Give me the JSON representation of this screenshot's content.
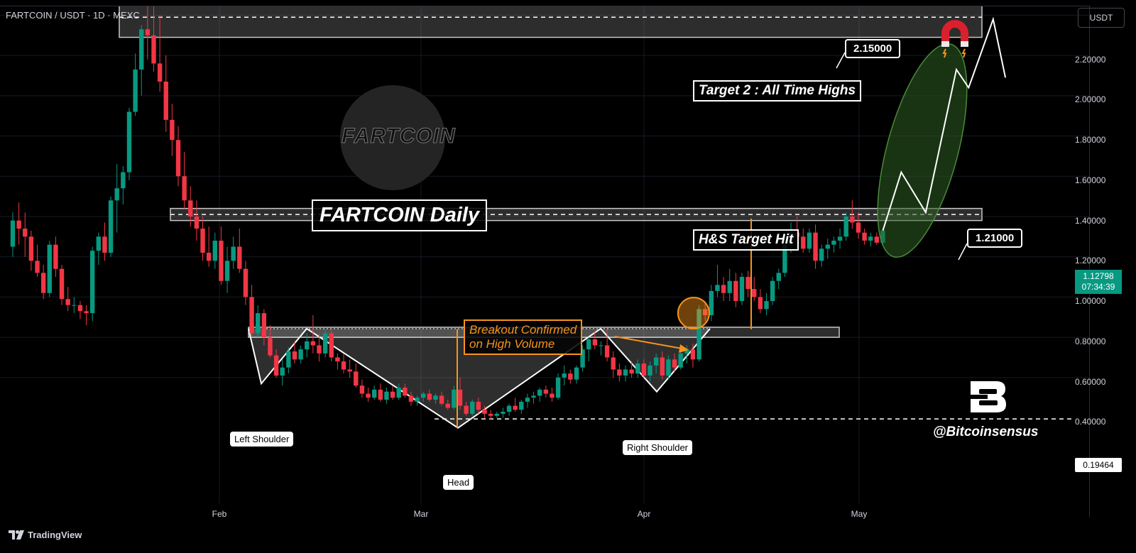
{
  "header": {
    "symbol_title": "FARTCOIN / USDT · 1D · MEXC",
    "currency_button": "USDT"
  },
  "footer": {
    "brand": "TradingView"
  },
  "annotations": {
    "chart_title": "FARTCOIN Daily",
    "target2": "Target 2 : All Time Highs",
    "hs_target": "H&S Target Hit",
    "breakout_line1": "Breakout Confirmed",
    "breakout_line2": "on High Volume",
    "level_high": "2.15000",
    "level_mid": "1.21000",
    "left_shoulder": "Left Shoulder",
    "head": "Head",
    "right_shoulder": "Right Shoulder",
    "handle": "@Bitcoinsensus",
    "watermark": "FARTCOIN"
  },
  "price_axis": {
    "labels": [
      "2.20000",
      "2.00000",
      "1.80000",
      "1.60000",
      "1.40000",
      "1.20000",
      "1.00000",
      "0.80000",
      "0.60000",
      "0.40000"
    ],
    "current_price": "1.12798",
    "countdown": "07:34:39",
    "low_marker": "0.19464"
  },
  "time_axis": {
    "labels": [
      "Feb",
      "Mar",
      "Apr",
      "May"
    ]
  },
  "colors": {
    "up": "#089981",
    "down": "#f23645",
    "accent": "#f7931a",
    "zone_fill": "#808080",
    "ellipse": "#2e5e22",
    "magnet": "#d9202c"
  },
  "chart_data": {
    "type": "candlestick",
    "symbol": "FARTCOIN / USDT",
    "interval": "1D",
    "exchange": "MEXC",
    "ylim": [
      0.0,
      2.36
    ],
    "x_ticks": [
      "Feb",
      "Mar",
      "Apr",
      "May"
    ],
    "levels": [
      2.15,
      1.21,
      0.63,
      0.19464
    ],
    "current_price": 1.12798,
    "ohlc": [
      [
        1.05,
        1.22,
        1.0,
        1.18
      ],
      [
        1.18,
        1.27,
        1.06,
        1.14
      ],
      [
        1.14,
        1.22,
        1.0,
        1.1
      ],
      [
        1.1,
        1.13,
        0.93,
        0.98
      ],
      [
        0.98,
        1.06,
        0.9,
        0.92
      ],
      [
        0.92,
        0.96,
        0.79,
        0.82
      ],
      [
        0.82,
        1.08,
        0.8,
        1.06
      ],
      [
        1.06,
        1.1,
        0.9,
        0.94
      ],
      [
        0.94,
        0.96,
        0.76,
        0.79
      ],
      [
        0.79,
        0.85,
        0.73,
        0.76
      ],
      [
        0.76,
        0.8,
        0.72,
        0.76
      ],
      [
        0.76,
        0.78,
        0.69,
        0.73
      ],
      [
        0.73,
        0.76,
        0.66,
        0.72
      ],
      [
        0.72,
        1.05,
        0.68,
        1.03
      ],
      [
        1.03,
        1.12,
        0.96,
        1.1
      ],
      [
        1.1,
        1.17,
        0.98,
        1.02
      ],
      [
        1.02,
        1.3,
        1.0,
        1.28
      ],
      [
        1.28,
        1.46,
        1.12,
        1.34
      ],
      [
        1.34,
        1.45,
        1.26,
        1.42
      ],
      [
        1.42,
        1.74,
        1.38,
        1.72
      ],
      [
        1.72,
        2.01,
        1.7,
        1.93
      ],
      [
        1.93,
        2.15,
        1.8,
        2.13
      ],
      [
        2.13,
        2.45,
        1.98,
        2.1
      ],
      [
        2.1,
        2.42,
        1.92,
        1.96
      ],
      [
        1.96,
        2.2,
        1.82,
        1.87
      ],
      [
        1.87,
        2.0,
        1.62,
        1.68
      ],
      [
        1.68,
        1.76,
        1.5,
        1.58
      ],
      [
        1.58,
        1.65,
        1.35,
        1.4
      ],
      [
        1.4,
        1.52,
        1.24,
        1.28
      ],
      [
        1.28,
        1.35,
        1.15,
        1.2
      ],
      [
        1.2,
        1.28,
        1.08,
        1.14
      ],
      [
        1.14,
        1.2,
        0.98,
        1.02
      ],
      [
        1.02,
        1.15,
        0.95,
        0.98
      ],
      [
        0.98,
        1.12,
        0.94,
        1.08
      ],
      [
        1.08,
        1.15,
        0.86,
        0.88
      ],
      [
        0.88,
        1.05,
        0.82,
        0.98
      ],
      [
        0.98,
        1.1,
        0.94,
        1.05
      ],
      [
        1.05,
        1.14,
        0.92,
        0.94
      ],
      [
        0.94,
        0.98,
        0.76,
        0.8
      ],
      [
        0.8,
        0.86,
        0.6,
        0.62
      ],
      [
        0.62,
        0.76,
        0.6,
        0.72
      ],
      [
        0.72,
        0.74,
        0.56,
        0.6
      ],
      [
        0.6,
        0.66,
        0.5,
        0.51
      ],
      [
        0.51,
        0.54,
        0.4,
        0.41
      ],
      [
        0.41,
        0.49,
        0.36,
        0.45
      ],
      [
        0.45,
        0.55,
        0.42,
        0.53
      ],
      [
        0.53,
        0.58,
        0.47,
        0.49
      ],
      [
        0.49,
        0.56,
        0.47,
        0.54
      ],
      [
        0.54,
        0.62,
        0.5,
        0.58
      ],
      [
        0.58,
        0.71,
        0.52,
        0.56
      ],
      [
        0.56,
        0.62,
        0.48,
        0.52
      ],
      [
        0.52,
        0.64,
        0.5,
        0.62
      ],
      [
        0.62,
        0.64,
        0.48,
        0.5
      ],
      [
        0.5,
        0.52,
        0.44,
        0.48
      ],
      [
        0.48,
        0.52,
        0.42,
        0.44
      ],
      [
        0.44,
        0.49,
        0.4,
        0.43
      ],
      [
        0.43,
        0.47,
        0.35,
        0.36
      ],
      [
        0.36,
        0.39,
        0.3,
        0.32
      ],
      [
        0.32,
        0.35,
        0.28,
        0.3
      ],
      [
        0.3,
        0.36,
        0.29,
        0.34
      ],
      [
        0.34,
        0.37,
        0.28,
        0.29
      ],
      [
        0.29,
        0.35,
        0.27,
        0.33
      ],
      [
        0.33,
        0.36,
        0.29,
        0.3
      ],
      [
        0.3,
        0.37,
        0.29,
        0.35
      ],
      [
        0.35,
        0.37,
        0.3,
        0.31
      ],
      [
        0.31,
        0.33,
        0.26,
        0.28
      ],
      [
        0.28,
        0.31,
        0.26,
        0.3
      ],
      [
        0.3,
        0.33,
        0.28,
        0.32
      ],
      [
        0.32,
        0.34,
        0.28,
        0.29
      ],
      [
        0.29,
        0.32,
        0.27,
        0.31
      ],
      [
        0.31,
        0.33,
        0.26,
        0.27
      ],
      [
        0.27,
        0.29,
        0.24,
        0.25
      ],
      [
        0.25,
        0.36,
        0.24,
        0.34
      ],
      [
        0.34,
        0.4,
        0.24,
        0.26
      ],
      [
        0.26,
        0.28,
        0.21,
        0.22
      ],
      [
        0.22,
        0.29,
        0.21,
        0.28
      ],
      [
        0.28,
        0.3,
        0.22,
        0.24
      ],
      [
        0.24,
        0.26,
        0.2,
        0.22
      ],
      [
        0.22,
        0.24,
        0.19,
        0.21
      ],
      [
        0.21,
        0.23,
        0.2,
        0.22
      ],
      [
        0.22,
        0.25,
        0.2,
        0.23
      ],
      [
        0.23,
        0.27,
        0.21,
        0.26
      ],
      [
        0.26,
        0.3,
        0.23,
        0.24
      ],
      [
        0.24,
        0.29,
        0.22,
        0.28
      ],
      [
        0.28,
        0.32,
        0.25,
        0.3
      ],
      [
        0.3,
        0.33,
        0.27,
        0.31
      ],
      [
        0.31,
        0.35,
        0.28,
        0.34
      ],
      [
        0.34,
        0.36,
        0.3,
        0.32
      ],
      [
        0.32,
        0.35,
        0.28,
        0.3
      ],
      [
        0.3,
        0.42,
        0.29,
        0.4
      ],
      [
        0.4,
        0.46,
        0.36,
        0.42
      ],
      [
        0.42,
        0.44,
        0.37,
        0.39
      ],
      [
        0.39,
        0.46,
        0.37,
        0.45
      ],
      [
        0.45,
        0.56,
        0.43,
        0.54
      ],
      [
        0.54,
        0.6,
        0.48,
        0.59
      ],
      [
        0.59,
        0.63,
        0.54,
        0.56
      ],
      [
        0.56,
        0.58,
        0.51,
        0.56
      ],
      [
        0.56,
        0.64,
        0.48,
        0.5
      ],
      [
        0.5,
        0.53,
        0.4,
        0.44
      ],
      [
        0.44,
        0.47,
        0.38,
        0.41
      ],
      [
        0.41,
        0.46,
        0.38,
        0.44
      ],
      [
        0.44,
        0.48,
        0.4,
        0.42
      ],
      [
        0.42,
        0.49,
        0.4,
        0.47
      ],
      [
        0.47,
        0.49,
        0.4,
        0.41
      ],
      [
        0.41,
        0.48,
        0.38,
        0.46
      ],
      [
        0.46,
        0.52,
        0.42,
        0.5
      ],
      [
        0.5,
        0.53,
        0.39,
        0.41
      ],
      [
        0.41,
        0.51,
        0.39,
        0.49
      ],
      [
        0.49,
        0.52,
        0.43,
        0.45
      ],
      [
        0.45,
        0.54,
        0.44,
        0.52
      ],
      [
        0.52,
        0.56,
        0.47,
        0.54
      ],
      [
        0.54,
        0.57,
        0.45,
        0.49
      ],
      [
        0.49,
        0.76,
        0.48,
        0.74
      ],
      [
        0.74,
        0.78,
        0.68,
        0.71
      ],
      [
        0.71,
        0.86,
        0.68,
        0.83
      ],
      [
        0.83,
        0.96,
        0.8,
        0.86
      ],
      [
        0.86,
        0.9,
        0.78,
        0.82
      ],
      [
        0.82,
        0.94,
        0.78,
        0.88
      ],
      [
        0.88,
        0.92,
        0.75,
        0.78
      ],
      [
        0.78,
        0.92,
        0.76,
        0.9
      ],
      [
        0.9,
        0.93,
        0.8,
        0.84
      ],
      [
        0.84,
        0.9,
        0.78,
        0.8
      ],
      [
        0.8,
        0.84,
        0.72,
        0.74
      ],
      [
        0.74,
        0.82,
        0.71,
        0.78
      ],
      [
        0.78,
        0.9,
        0.76,
        0.88
      ],
      [
        0.88,
        0.94,
        0.84,
        0.92
      ],
      [
        0.92,
        1.1,
        0.9,
        1.06
      ],
      [
        1.06,
        1.17,
        1.02,
        1.12
      ],
      [
        1.12,
        1.2,
        1.05,
        1.1
      ],
      [
        1.1,
        1.14,
        1.02,
        1.04
      ],
      [
        1.04,
        1.14,
        1.02,
        1.12
      ],
      [
        1.12,
        1.16,
        0.94,
        0.98
      ],
      [
        0.98,
        1.06,
        0.95,
        1.04
      ],
      [
        1.04,
        1.09,
        0.99,
        1.06
      ],
      [
        1.06,
        1.1,
        1.02,
        1.08
      ],
      [
        1.08,
        1.14,
        1.04,
        1.1
      ],
      [
        1.1,
        1.22,
        1.08,
        1.2
      ],
      [
        1.2,
        1.28,
        1.14,
        1.17
      ],
      [
        1.17,
        1.22,
        1.09,
        1.12
      ],
      [
        1.12,
        1.14,
        1.06,
        1.08
      ],
      [
        1.08,
        1.12,
        1.05,
        1.1
      ],
      [
        1.1,
        1.12,
        1.06,
        1.07
      ],
      [
        1.07,
        1.14,
        1.06,
        1.13
      ]
    ],
    "projection_path": [
      [
        142,
        1.13
      ],
      [
        145,
        1.42
      ],
      [
        149,
        1.22
      ],
      [
        154,
        1.93
      ],
      [
        156,
        1.84
      ],
      [
        160,
        2.18
      ],
      [
        162,
        1.89
      ]
    ]
  }
}
